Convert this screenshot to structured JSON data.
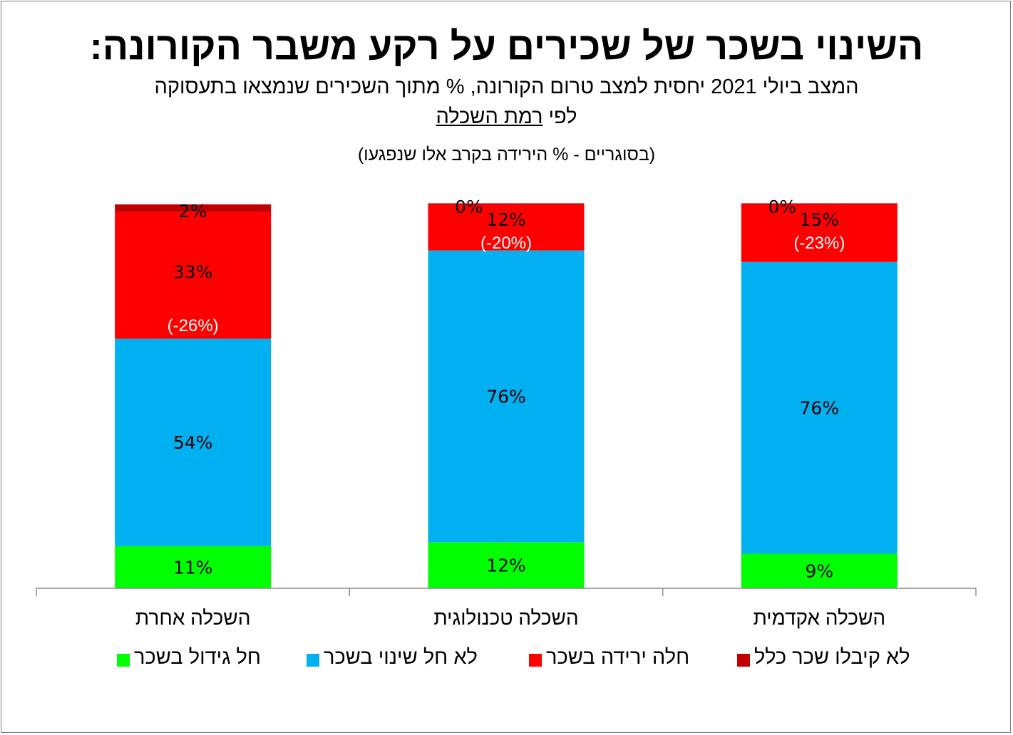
{
  "header": {
    "title": "השינוי בשכר של שכירים על רקע משבר הקורונה:",
    "subtitle_line1": "המצב ביולי 2021 יחסית למצב טרום הקורונה, % מתוך השכירים שנמצאו בתעסוקה",
    "subtitle_line2_prefix": "לפי ",
    "subtitle_line2_underlined": "רמת השכלה",
    "note": "(בסוגריים - % הירידה בקרב אלו שנפגעו)"
  },
  "chart_data": {
    "type": "bar",
    "stacked": true,
    "ylim": [
      0,
      100
    ],
    "grid": false,
    "legend_position": "bottom",
    "categories": [
      "השכלה אחרת",
      "השכלה טכנולוגית",
      "השכלה אקדמית"
    ],
    "series": [
      {
        "name": "חל גידול בשכר",
        "color": "#00ff00",
        "values": [
          11,
          12,
          9
        ],
        "labels": [
          "11%",
          "12%",
          "9%"
        ]
      },
      {
        "name": "לא חל שינוי בשכר",
        "color": "#00b0f0",
        "values": [
          54,
          76,
          76
        ],
        "labels": [
          "54%",
          "76%",
          "76%"
        ]
      },
      {
        "name": "חלה ירידה בשכר",
        "color": "#ff0000",
        "values": [
          33,
          12,
          15
        ],
        "labels": [
          "33%",
          "12%",
          "15%"
        ],
        "annotations": [
          "(-26%)",
          "(-20%)",
          "(-23%)"
        ]
      },
      {
        "name": "לא קיבלו שכר כלל",
        "color": "#c00000",
        "values": [
          2,
          0,
          0
        ],
        "labels": [
          "2%",
          "0%",
          "0%"
        ]
      }
    ]
  },
  "legend_order": [
    3,
    2,
    1,
    0
  ]
}
